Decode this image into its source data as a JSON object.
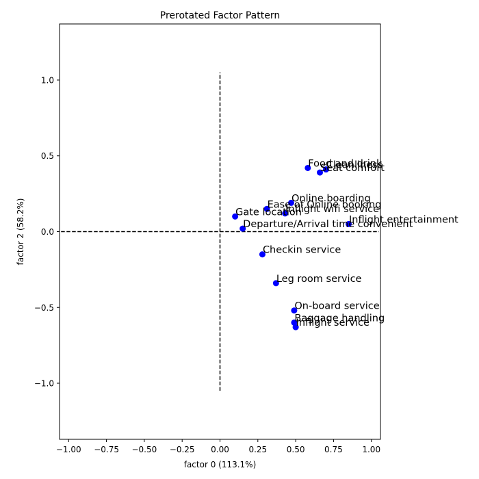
{
  "chart_data": {
    "type": "scatter",
    "title": "Prerotated Factor Pattern",
    "xlabel": "factor 0 (113.1%)",
    "ylabel": "factor 2 (58.2%)",
    "xlim": [
      -1.06,
      1.06
    ],
    "ylim": [
      -1.37,
      1.37
    ],
    "xticks": [
      -1.0,
      -0.75,
      -0.5,
      -0.25,
      0.0,
      0.25,
      0.5,
      0.75,
      1.0
    ],
    "xtick_labels": [
      "−1.00",
      "−0.75",
      "−0.50",
      "−0.25",
      "0.00",
      "0.25",
      "0.50",
      "0.75",
      "1.00"
    ],
    "yticks": [
      -1.0,
      -0.5,
      0.0,
      0.5,
      1.0
    ],
    "ytick_labels": [
      "−1.0",
      "−0.5",
      "0.0",
      "0.5",
      "1.0"
    ],
    "grid": false,
    "marker_color": "#0000ff",
    "reference_lines": [
      {
        "orientation": "horizontal",
        "value": 0.0,
        "from": -1.05,
        "to": 1.05,
        "style": "dashed",
        "color": "#000000"
      },
      {
        "orientation": "vertical",
        "value": 0.0,
        "from": -1.05,
        "to": 1.05,
        "style": "dashed",
        "color": "#000000"
      }
    ],
    "points": [
      {
        "label": "Food and drink",
        "x": 0.58,
        "y": 0.42
      },
      {
        "label": "Cleanliness",
        "x": 0.7,
        "y": 0.41
      },
      {
        "label": "Seat comfort",
        "x": 0.66,
        "y": 0.39
      },
      {
        "label": "Online boarding",
        "x": 0.47,
        "y": 0.19
      },
      {
        "label": "Ease of Online booking",
        "x": 0.31,
        "y": 0.15
      },
      {
        "label": "Inflight wifi service",
        "x": 0.43,
        "y": 0.12
      },
      {
        "label": "Gate location",
        "x": 0.1,
        "y": 0.1
      },
      {
        "label": "Inflight entertainment",
        "x": 0.85,
        "y": 0.05
      },
      {
        "label": "Departure/Arrival time convenient",
        "x": 0.15,
        "y": 0.02
      },
      {
        "label": "Checkin service",
        "x": 0.28,
        "y": -0.15
      },
      {
        "label": "Leg room service",
        "x": 0.37,
        "y": -0.34
      },
      {
        "label": "On-board service",
        "x": 0.49,
        "y": -0.52
      },
      {
        "label": "Baggage handling",
        "x": 0.49,
        "y": -0.6
      },
      {
        "label": "Inflight service",
        "x": 0.5,
        "y": -0.63
      }
    ]
  }
}
